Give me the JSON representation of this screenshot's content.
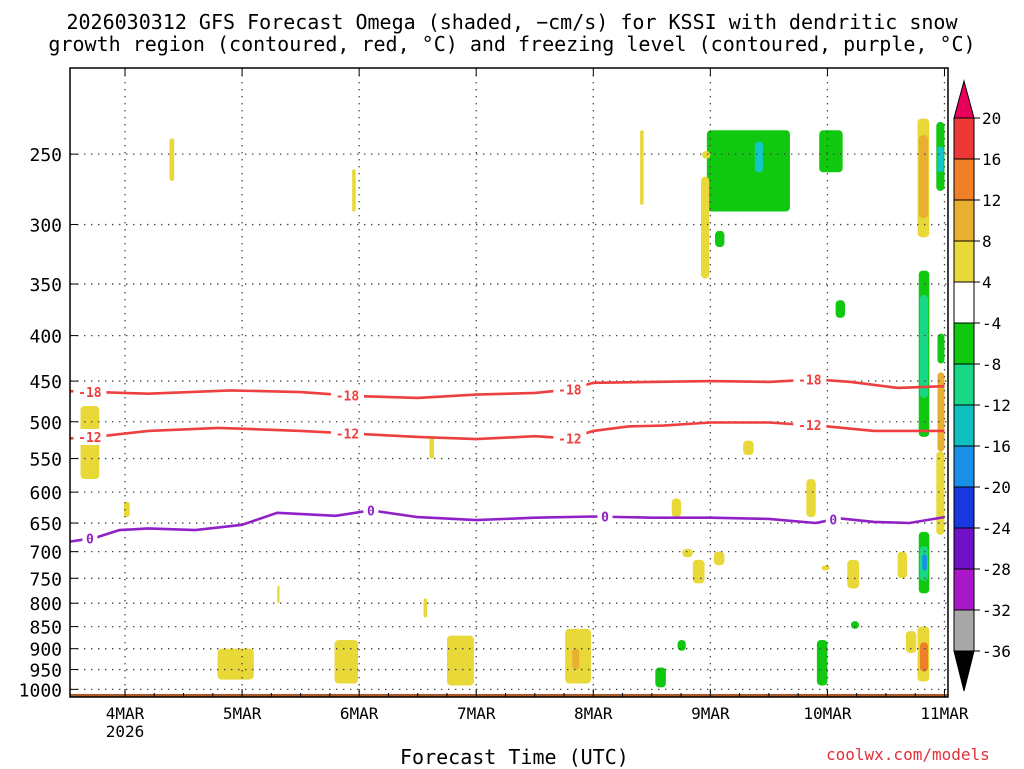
{
  "title_line1": "2026030312 GFS Forecast Omega (shaded, −cm/s) for KSSI with dendritic snow",
  "title_line2": "growth region (contoured, red, °C) and freezing level (contoured, purple, °C)",
  "x_axis_title": "Forecast Time (UTC)",
  "credit": "coolwx.com/models",
  "chart_data": {
    "type": "heatmap",
    "x": {
      "range": [
        3.53,
        11.03
      ],
      "ticks": [
        {
          "v": 4,
          "label": "4MAR",
          "sub": "2026"
        },
        {
          "v": 5,
          "label": "5MAR"
        },
        {
          "v": 6,
          "label": "6MAR"
        },
        {
          "v": 7,
          "label": "7MAR"
        },
        {
          "v": 8,
          "label": "8MAR"
        },
        {
          "v": 9,
          "label": "9MAR"
        },
        {
          "v": 10,
          "label": "10MAR"
        },
        {
          "v": 11,
          "label": "11MAR"
        }
      ]
    },
    "y": {
      "scale": "log",
      "inverted": true,
      "range": [
        200,
        1020
      ],
      "ticks": [
        250,
        300,
        350,
        400,
        450,
        500,
        550,
        600,
        650,
        700,
        750,
        800,
        850,
        900,
        950,
        1000
      ],
      "grid": true
    },
    "colorbar": {
      "levels": [
        20,
        16,
        12,
        8,
        4,
        -4,
        -8,
        -12,
        -16,
        -20,
        -24,
        -28,
        -32,
        -36
      ],
      "colors": [
        "#e8005a",
        "#ee3838",
        "#f08028",
        "#e8b030",
        "#e8d838",
        "#ffffff",
        "#10c810",
        "#18d888",
        "#10c0c0",
        "#1890e8",
        "#1838e0",
        "#7010c8",
        "#a818c8",
        "#a8a8a8",
        "#000000"
      ]
    },
    "contours": [
      {
        "label": "-18",
        "color": "#ee4040",
        "points": [
          [
            3.53,
            462
          ],
          [
            4.2,
            465
          ],
          [
            4.9,
            461
          ],
          [
            5.5,
            463
          ],
          [
            6.0,
            468
          ],
          [
            6.5,
            470
          ],
          [
            7.0,
            466
          ],
          [
            7.5,
            464
          ],
          [
            7.8,
            460
          ],
          [
            8.0,
            452
          ],
          [
            8.5,
            451
          ],
          [
            9.0,
            450
          ],
          [
            9.5,
            451
          ],
          [
            9.9,
            448
          ],
          [
            10.2,
            451
          ],
          [
            10.6,
            458
          ],
          [
            11.0,
            456
          ]
        ],
        "labels": [
          3.7,
          5.9,
          7.8,
          9.85
        ]
      },
      {
        "label": "-12",
        "color": "#ee4040",
        "points": [
          [
            3.53,
            522
          ],
          [
            3.8,
            519
          ],
          [
            4.2,
            512
          ],
          [
            4.8,
            508
          ],
          [
            5.5,
            512
          ],
          [
            6.0,
            516
          ],
          [
            6.5,
            520
          ],
          [
            7.0,
            523
          ],
          [
            7.5,
            519
          ],
          [
            7.8,
            522
          ],
          [
            8.0,
            512
          ],
          [
            8.3,
            506
          ],
          [
            8.6,
            505
          ],
          [
            9.0,
            501
          ],
          [
            9.5,
            501
          ],
          [
            10.0,
            506
          ],
          [
            10.4,
            512
          ],
          [
            11.0,
            512
          ]
        ],
        "labels": [
          3.7,
          5.9,
          7.8,
          9.85
        ]
      },
      {
        "label": "0",
        "color": "#9020c8",
        "points": [
          [
            3.53,
            682
          ],
          [
            3.75,
            675
          ],
          [
            3.95,
            662
          ],
          [
            4.2,
            659
          ],
          [
            4.6,
            662
          ],
          [
            5.0,
            653
          ],
          [
            5.3,
            633
          ],
          [
            5.8,
            638
          ],
          [
            6.1,
            629
          ],
          [
            6.5,
            640
          ],
          [
            7.0,
            645
          ],
          [
            7.5,
            641
          ],
          [
            8.0,
            639
          ],
          [
            8.5,
            641
          ],
          [
            9.0,
            641
          ],
          [
            9.5,
            643
          ],
          [
            9.9,
            650
          ],
          [
            10.1,
            642
          ],
          [
            10.4,
            648
          ],
          [
            10.7,
            650
          ],
          [
            11.0,
            640
          ]
        ],
        "labels": [
          3.7,
          6.1,
          8.1,
          10.05
        ]
      }
    ],
    "shaded_regions": [
      {
        "color": "#10c810",
        "x0": 8.97,
        "x1": 9.68,
        "p0": 235,
        "p1": 290
      },
      {
        "color": "#10c810",
        "x0": 9.93,
        "x1": 10.13,
        "p0": 235,
        "p1": 262
      },
      {
        "color": "#10c8c8",
        "x0": 9.38,
        "x1": 9.45,
        "p0": 242,
        "p1": 262
      },
      {
        "color": "#e8d838",
        "x0": 8.92,
        "x1": 8.99,
        "p0": 265,
        "p1": 345
      },
      {
        "color": "#e8d838",
        "x0": 10.77,
        "x1": 10.87,
        "p0": 228,
        "p1": 310
      },
      {
        "color": "#e8b030",
        "x0": 10.78,
        "x1": 10.86,
        "p0": 238,
        "p1": 295
      },
      {
        "color": "#10c810",
        "x0": 10.78,
        "x1": 10.87,
        "p0": 338,
        "p1": 520
      },
      {
        "color": "#18d888",
        "x0": 10.79,
        "x1": 10.86,
        "p0": 360,
        "p1": 470
      },
      {
        "color": "#10c810",
        "x0": 10.93,
        "x1": 11.0,
        "p0": 230,
        "p1": 275
      },
      {
        "color": "#10c8c8",
        "x0": 10.94,
        "x1": 10.99,
        "p0": 245,
        "p1": 262
      },
      {
        "color": "#10c810",
        "x0": 10.94,
        "x1": 11.0,
        "p0": 398,
        "p1": 430
      },
      {
        "color": "#e8b030",
        "x0": 10.94,
        "x1": 11.0,
        "p0": 440,
        "p1": 540
      },
      {
        "color": "#e8d838",
        "x0": 10.93,
        "x1": 11.0,
        "p0": 540,
        "p1": 670
      },
      {
        "color": "#10c810",
        "x0": 10.78,
        "x1": 10.87,
        "p0": 665,
        "p1": 780
      },
      {
        "color": "#18d888",
        "x0": 10.79,
        "x1": 10.86,
        "p0": 690,
        "p1": 755
      },
      {
        "color": "#1890e8",
        "x0": 10.81,
        "x1": 10.85,
        "p0": 705,
        "p1": 735
      },
      {
        "color": "#e8d838",
        "x0": 10.77,
        "x1": 10.87,
        "p0": 850,
        "p1": 980
      },
      {
        "color": "#f08028",
        "x0": 10.79,
        "x1": 10.86,
        "p0": 885,
        "p1": 955
      },
      {
        "color": "#e8d838",
        "x0": 10.67,
        "x1": 10.76,
        "p0": 860,
        "p1": 910
      },
      {
        "color": "#e8d838",
        "x0": 10.6,
        "x1": 10.68,
        "p0": 700,
        "p1": 750
      },
      {
        "color": "#e8d838",
        "x0": 3.62,
        "x1": 3.78,
        "p0": 480,
        "p1": 580
      },
      {
        "color": "#e8d838",
        "x0": 4.79,
        "x1": 5.1,
        "p0": 900,
        "p1": 975
      },
      {
        "color": "#e8d838",
        "x0": 5.79,
        "x1": 5.99,
        "p0": 880,
        "p1": 985
      },
      {
        "color": "#e8d838",
        "x0": 6.75,
        "x1": 6.98,
        "p0": 870,
        "p1": 990
      },
      {
        "color": "#e8d838",
        "x0": 7.76,
        "x1": 7.98,
        "p0": 855,
        "p1": 985
      },
      {
        "color": "#e8b030",
        "x0": 7.82,
        "x1": 7.88,
        "p0": 900,
        "p1": 950
      },
      {
        "color": "#10c810",
        "x0": 8.53,
        "x1": 8.62,
        "p0": 945,
        "p1": 995
      },
      {
        "color": "#10c810",
        "x0": 9.91,
        "x1": 10.0,
        "p0": 880,
        "p1": 990
      },
      {
        "color": "#10c810",
        "x0": 8.72,
        "x1": 8.79,
        "p0": 880,
        "p1": 905
      },
      {
        "color": "#10c810",
        "x0": 10.2,
        "x1": 10.27,
        "p0": 838,
        "p1": 855
      },
      {
        "color": "#10c810",
        "x0": 10.07,
        "x1": 10.15,
        "p0": 365,
        "p1": 382
      },
      {
        "color": "#10c810",
        "x0": 9.04,
        "x1": 9.12,
        "p0": 305,
        "p1": 318
      },
      {
        "color": "#e8d838",
        "x0": 10.17,
        "x1": 10.27,
        "p0": 715,
        "p1": 770
      },
      {
        "color": "#e8d838",
        "x0": 9.82,
        "x1": 9.9,
        "p0": 580,
        "p1": 640
      },
      {
        "color": "#e8d838",
        "x0": 8.67,
        "x1": 8.75,
        "p0": 610,
        "p1": 640
      },
      {
        "color": "#e8d838",
        "x0": 9.28,
        "x1": 9.37,
        "p0": 525,
        "p1": 545
      },
      {
        "color": "#e8d838",
        "x0": 8.85,
        "x1": 8.95,
        "p0": 715,
        "p1": 760
      },
      {
        "color": "#e8d838",
        "x0": 9.03,
        "x1": 9.12,
        "p0": 700,
        "p1": 725
      },
      {
        "color": "#e8d838",
        "x0": 8.76,
        "x1": 8.85,
        "p0": 695,
        "p1": 710
      },
      {
        "color": "#e8d838",
        "x0": 9.95,
        "x1": 10.02,
        "p0": 725,
        "p1": 735
      },
      {
        "color": "#e8d838",
        "x0": 4.38,
        "x1": 4.42,
        "p0": 240,
        "p1": 268
      },
      {
        "color": "#e8d838",
        "x0": 6.6,
        "x1": 6.64,
        "p0": 520,
        "p1": 550
      },
      {
        "color": "#e8d838",
        "x0": 3.99,
        "x1": 4.04,
        "p0": 615,
        "p1": 640
      },
      {
        "color": "#e8d838",
        "x0": 8.4,
        "x1": 8.43,
        "p0": 235,
        "p1": 285
      },
      {
        "color": "#e8d838",
        "x0": 8.93,
        "x1": 9.0,
        "p0": 248,
        "p1": 253
      },
      {
        "color": "#e8d838",
        "x0": 5.3,
        "x1": 5.32,
        "p0": 765,
        "p1": 800
      },
      {
        "color": "#e8d838",
        "x0": 6.55,
        "x1": 6.58,
        "p0": 790,
        "p1": 830
      },
      {
        "color": "#e8d838",
        "x0": 5.94,
        "x1": 5.97,
        "p0": 260,
        "p1": 290
      }
    ],
    "terrain_color": "#a85a2a",
    "terrain_pressure": 1012
  }
}
